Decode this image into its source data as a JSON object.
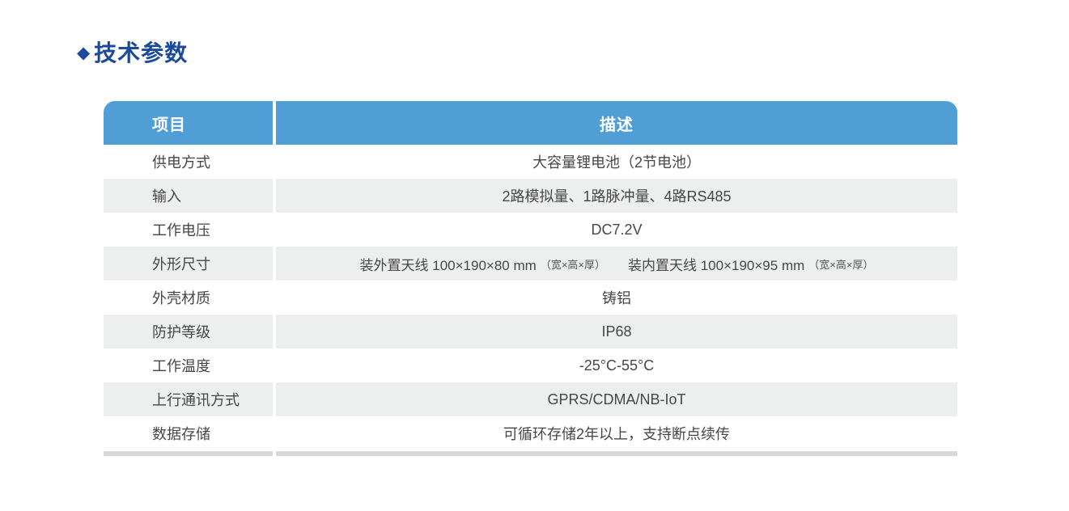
{
  "colors": {
    "header-bg": "#519dd6",
    "title": "#1b4a9a",
    "row-alt": "#edeeee",
    "bottom-bar": "#d9d9d9",
    "text": "#474747"
  },
  "title": {
    "bullet": "◆",
    "text": "技术参数"
  },
  "table": {
    "columns": [
      {
        "label": "项目"
      },
      {
        "label": "描述"
      }
    ],
    "rows": [
      {
        "label": "供电方式",
        "value": "大容量锂电池（2节电池）"
      },
      {
        "label": "输入",
        "value": "2路模拟量、1路脉冲量、4路RS485"
      },
      {
        "label": "工作电压",
        "value": "DC7.2V"
      },
      {
        "label": "外形尺寸",
        "value_parts": {
          "external": "装外置天线  100×190×80 mm",
          "external_note": "（宽×高×厚）",
          "internal": "装内置天线  100×190×95 mm",
          "internal_note": "（宽×高×厚）"
        }
      },
      {
        "label": "外壳材质",
        "value": "铸铝"
      },
      {
        "label": "防护等级",
        "value": "IP68"
      },
      {
        "label": "工作温度",
        "value": "-25°C-55°C"
      },
      {
        "label": "上行通讯方式",
        "value": "GPRS/CDMA/NB-IoT"
      },
      {
        "label": "数据存储",
        "value": "可循环存储2年以上，支持断点续传"
      }
    ]
  }
}
